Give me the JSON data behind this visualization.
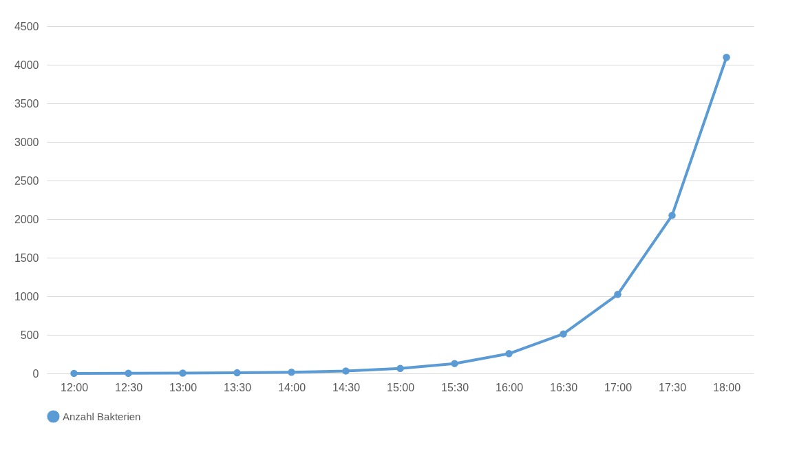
{
  "chart_data": {
    "type": "line",
    "categories": [
      "12:00",
      "12:30",
      "13:00",
      "13:30",
      "14:00",
      "14:30",
      "15:00",
      "15:30",
      "16:00",
      "16:30",
      "17:00",
      "17:30",
      "18:00"
    ],
    "series": [
      {
        "name": "Anzahl Bakterien",
        "color": "#5b9bd5",
        "values": [
          1,
          2,
          4,
          8,
          16,
          32,
          64,
          128,
          256,
          512,
          1024,
          2048,
          4096
        ]
      }
    ],
    "ylim": [
      0,
      4500
    ],
    "yticks": [
      0,
      500,
      1000,
      1500,
      2000,
      2500,
      3000,
      3500,
      4000,
      4500
    ],
    "grid": "y",
    "legend": "bottom",
    "marker": "circle",
    "line_style": "solid"
  }
}
